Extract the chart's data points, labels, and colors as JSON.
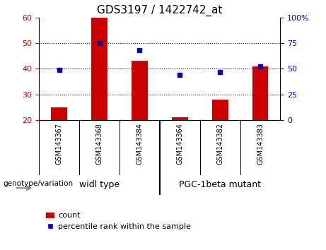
{
  "title": "GDS3197 / 1422742_at",
  "samples": [
    "GSM143367",
    "GSM143368",
    "GSM143384",
    "GSM143364",
    "GSM143382",
    "GSM143383"
  ],
  "counts": [
    25,
    60,
    43,
    21,
    28,
    41
  ],
  "percentile_ranks": [
    49,
    75,
    68,
    44,
    47,
    52
  ],
  "ylim_left": [
    20,
    60
  ],
  "ylim_right": [
    0,
    100
  ],
  "yticks_left": [
    20,
    30,
    40,
    50,
    60
  ],
  "yticks_right": [
    0,
    25,
    50,
    75,
    100
  ],
  "bar_color": "#cc0000",
  "dot_color": "#0000bb",
  "bar_bottom": 20,
  "group_separator_idx": 3,
  "title_fontsize": 11,
  "tick_color_left": "#cc0000",
  "tick_color_right": "#0000bb",
  "bg_color": "#ffffff",
  "plot_bg_color": "#ffffff",
  "sample_bg_color": "#cccccc",
  "group_bg_color": "#90ee90",
  "legend_items": [
    "count",
    "percentile rank within the sample"
  ],
  "genotype_label": "genotype/variation",
  "group_labels": [
    "widl type",
    "PGC-1beta mutant"
  ]
}
